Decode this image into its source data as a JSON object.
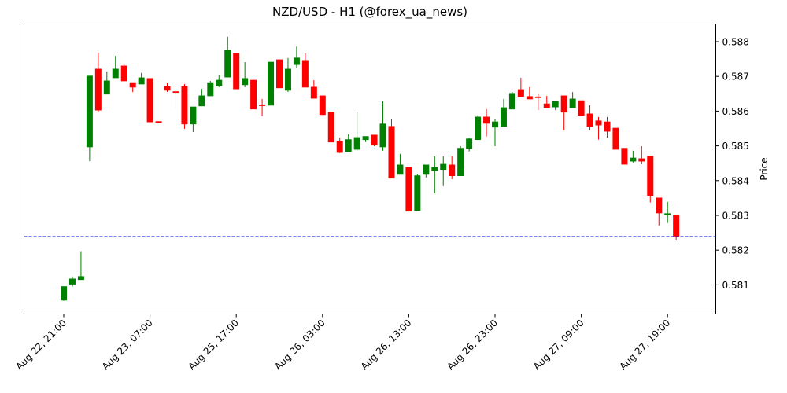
{
  "chart_data": {
    "type": "candlestick",
    "title": "NZD/USD - H1 (@forex_ua_news)",
    "xlabel": "",
    "ylabel": "Price",
    "ylim": [
      0.58022,
      0.58852
    ],
    "y_ticks": [
      "0.581",
      "0.582",
      "0.583",
      "0.584",
      "0.585",
      "0.586",
      "0.587",
      "0.588"
    ],
    "x_ticks": [
      {
        "index": 0,
        "label": "Aug 22, 21:00"
      },
      {
        "index": 10,
        "label": "Aug 23, 07:00"
      },
      {
        "index": 20,
        "label": "Aug 25, 17:00"
      },
      {
        "index": 30,
        "label": "Aug 26, 03:00"
      },
      {
        "index": 40,
        "label": "Aug 26, 13:00"
      },
      {
        "index": 50,
        "label": "Aug 26, 23:00"
      },
      {
        "index": 60,
        "label": "Aug 27, 09:00"
      },
      {
        "index": 70,
        "label": "Aug 27, 19:00"
      }
    ],
    "grid": false,
    "current_price_line": {
      "value": 0.58239,
      "style": "dashed",
      "color": "#0000ff"
    },
    "colors": {
      "up": "#008000",
      "down": "#ff0000"
    },
    "candles": [
      {
        "o": 0.58056,
        "h": 0.58095,
        "l": 0.58054,
        "c": 0.58095
      },
      {
        "o": 0.58102,
        "h": 0.58124,
        "l": 0.58095,
        "c": 0.58117
      },
      {
        "o": 0.58115,
        "h": 0.58197,
        "l": 0.58115,
        "c": 0.58124
      },
      {
        "o": 0.58497,
        "h": 0.58701,
        "l": 0.58456,
        "c": 0.58701
      },
      {
        "o": 0.58721,
        "h": 0.58768,
        "l": 0.58597,
        "c": 0.58603
      },
      {
        "o": 0.58649,
        "h": 0.58714,
        "l": 0.58649,
        "c": 0.58687
      },
      {
        "o": 0.58696,
        "h": 0.58759,
        "l": 0.58696,
        "c": 0.58721
      },
      {
        "o": 0.5873,
        "h": 0.58734,
        "l": 0.58687,
        "c": 0.58687
      },
      {
        "o": 0.58682,
        "h": 0.58682,
        "l": 0.58655,
        "c": 0.58669
      },
      {
        "o": 0.58678,
        "h": 0.5871,
        "l": 0.58678,
        "c": 0.58696
      },
      {
        "o": 0.58694,
        "h": 0.58694,
        "l": 0.58569,
        "c": 0.58569
      },
      {
        "o": 0.5857,
        "h": 0.5857,
        "l": 0.58568,
        "c": 0.58569
      },
      {
        "o": 0.58671,
        "h": 0.58682,
        "l": 0.58655,
        "c": 0.5866
      },
      {
        "o": 0.58656,
        "h": 0.58671,
        "l": 0.58612,
        "c": 0.58655
      },
      {
        "o": 0.58671,
        "h": 0.58678,
        "l": 0.58549,
        "c": 0.58563
      },
      {
        "o": 0.58563,
        "h": 0.58612,
        "l": 0.5854,
        "c": 0.58612
      },
      {
        "o": 0.58615,
        "h": 0.58664,
        "l": 0.58615,
        "c": 0.58644
      },
      {
        "o": 0.58644,
        "h": 0.58687,
        "l": 0.58644,
        "c": 0.58682
      },
      {
        "o": 0.58673,
        "h": 0.58703,
        "l": 0.58669,
        "c": 0.58689
      },
      {
        "o": 0.58698,
        "h": 0.58814,
        "l": 0.58698,
        "c": 0.58775
      },
      {
        "o": 0.58766,
        "h": 0.58766,
        "l": 0.58664,
        "c": 0.58664
      },
      {
        "o": 0.58676,
        "h": 0.58741,
        "l": 0.58669,
        "c": 0.58694
      },
      {
        "o": 0.58689,
        "h": 0.58689,
        "l": 0.58606,
        "c": 0.58606
      },
      {
        "o": 0.58618,
        "h": 0.58635,
        "l": 0.58585,
        "c": 0.58617
      },
      {
        "o": 0.58617,
        "h": 0.58741,
        "l": 0.58617,
        "c": 0.58741
      },
      {
        "o": 0.58748,
        "h": 0.58748,
        "l": 0.58667,
        "c": 0.58667
      },
      {
        "o": 0.5866,
        "h": 0.58753,
        "l": 0.58655,
        "c": 0.58721
      },
      {
        "o": 0.58734,
        "h": 0.58786,
        "l": 0.58723,
        "c": 0.58753
      },
      {
        "o": 0.58746,
        "h": 0.58766,
        "l": 0.58669,
        "c": 0.58669
      },
      {
        "o": 0.58669,
        "h": 0.58689,
        "l": 0.58637,
        "c": 0.58637
      },
      {
        "o": 0.58644,
        "h": 0.58644,
        "l": 0.5859,
        "c": 0.5859
      },
      {
        "o": 0.58597,
        "h": 0.58597,
        "l": 0.58511,
        "c": 0.58511
      },
      {
        "o": 0.58513,
        "h": 0.58524,
        "l": 0.58479,
        "c": 0.58481
      },
      {
        "o": 0.58484,
        "h": 0.58533,
        "l": 0.58484,
        "c": 0.58518
      },
      {
        "o": 0.5849,
        "h": 0.58599,
        "l": 0.58486,
        "c": 0.58524
      },
      {
        "o": 0.58518,
        "h": 0.58527,
        "l": 0.58511,
        "c": 0.58527
      },
      {
        "o": 0.58531,
        "h": 0.58531,
        "l": 0.58499,
        "c": 0.58502
      },
      {
        "o": 0.58497,
        "h": 0.58628,
        "l": 0.58486,
        "c": 0.58563
      },
      {
        "o": 0.58556,
        "h": 0.58576,
        "l": 0.58407,
        "c": 0.58407
      },
      {
        "o": 0.58418,
        "h": 0.58477,
        "l": 0.58418,
        "c": 0.58445
      },
      {
        "o": 0.58438,
        "h": 0.58438,
        "l": 0.58312,
        "c": 0.58312
      },
      {
        "o": 0.58314,
        "h": 0.58418,
        "l": 0.58314,
        "c": 0.58414
      },
      {
        "o": 0.58418,
        "h": 0.58445,
        "l": 0.58409,
        "c": 0.58445
      },
      {
        "o": 0.58429,
        "h": 0.5847,
        "l": 0.58364,
        "c": 0.58438
      },
      {
        "o": 0.58432,
        "h": 0.5847,
        "l": 0.58384,
        "c": 0.58447
      },
      {
        "o": 0.58445,
        "h": 0.5847,
        "l": 0.58404,
        "c": 0.58414
      },
      {
        "o": 0.58414,
        "h": 0.58499,
        "l": 0.58414,
        "c": 0.58493
      },
      {
        "o": 0.58493,
        "h": 0.58524,
        "l": 0.58484,
        "c": 0.5852
      },
      {
        "o": 0.58518,
        "h": 0.58588,
        "l": 0.58518,
        "c": 0.58583
      },
      {
        "o": 0.58583,
        "h": 0.58606,
        "l": 0.58527,
        "c": 0.58565
      },
      {
        "o": 0.58554,
        "h": 0.58576,
        "l": 0.58499,
        "c": 0.58569
      },
      {
        "o": 0.58556,
        "h": 0.58635,
        "l": 0.58556,
        "c": 0.5861
      },
      {
        "o": 0.58606,
        "h": 0.58655,
        "l": 0.58606,
        "c": 0.58651
      },
      {
        "o": 0.58662,
        "h": 0.58696,
        "l": 0.58642,
        "c": 0.58642
      },
      {
        "o": 0.58642,
        "h": 0.58669,
        "l": 0.58635,
        "c": 0.58635
      },
      {
        "o": 0.58641,
        "h": 0.58649,
        "l": 0.58603,
        "c": 0.5864
      },
      {
        "o": 0.58621,
        "h": 0.58644,
        "l": 0.5861,
        "c": 0.5861
      },
      {
        "o": 0.58612,
        "h": 0.58628,
        "l": 0.58603,
        "c": 0.58628
      },
      {
        "o": 0.58644,
        "h": 0.58644,
        "l": 0.58545,
        "c": 0.58597
      },
      {
        "o": 0.5861,
        "h": 0.58655,
        "l": 0.5861,
        "c": 0.58635
      },
      {
        "o": 0.5863,
        "h": 0.5863,
        "l": 0.58588,
        "c": 0.58588
      },
      {
        "o": 0.58592,
        "h": 0.58617,
        "l": 0.58545,
        "c": 0.58556
      },
      {
        "o": 0.58572,
        "h": 0.58583,
        "l": 0.58518,
        "c": 0.5856
      },
      {
        "o": 0.58569,
        "h": 0.58583,
        "l": 0.58524,
        "c": 0.58542
      },
      {
        "o": 0.58551,
        "h": 0.58551,
        "l": 0.5849,
        "c": 0.5849
      },
      {
        "o": 0.58493,
        "h": 0.58493,
        "l": 0.58447,
        "c": 0.58447
      },
      {
        "o": 0.58456,
        "h": 0.58486,
        "l": 0.58452,
        "c": 0.58465
      },
      {
        "o": 0.58463,
        "h": 0.58499,
        "l": 0.58447,
        "c": 0.58456
      },
      {
        "o": 0.5847,
        "h": 0.5847,
        "l": 0.58337,
        "c": 0.58357
      },
      {
        "o": 0.5835,
        "h": 0.5835,
        "l": 0.58271,
        "c": 0.58307
      },
      {
        "o": 0.58301,
        "h": 0.58339,
        "l": 0.58278,
        "c": 0.58305
      },
      {
        "o": 0.58301,
        "h": 0.58301,
        "l": 0.5823,
        "c": 0.5824
      }
    ]
  }
}
